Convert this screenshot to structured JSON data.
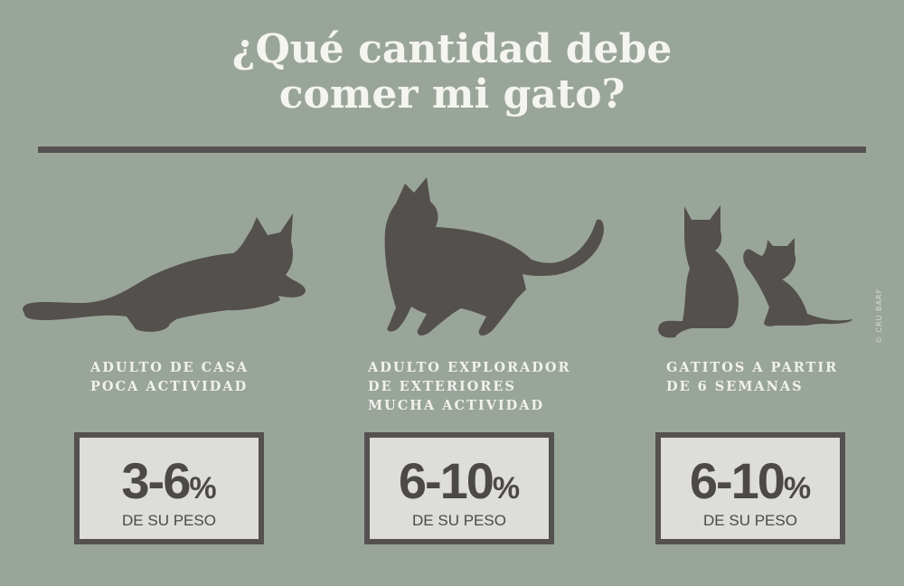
{
  "title": {
    "line1": "¿Qué cantidad  debe",
    "line2": "comer mi gato?"
  },
  "cards": [
    {
      "icon": "lying-cat-icon",
      "label": [
        "ADULTO DE CASA",
        "POCA ACTIVIDAD"
      ],
      "range": "3-6",
      "unit": "%",
      "sub": "DE SU PESO"
    },
    {
      "icon": "walking-cat-icon",
      "label": [
        "ADULTO EXPLORADOR",
        "DE EXTERIORES",
        "MUCHA ACTIVIDAD"
      ],
      "range": "6-10",
      "unit": "%",
      "sub": "DE SU PESO"
    },
    {
      "icon": "cat-and-kitten-icon",
      "label": [
        "GATITOS A PARTIR",
        "DE 6 SEMANAS"
      ],
      "range": "6-10",
      "unit": "%",
      "sub": "DE SU PESO"
    }
  ],
  "credit": "© CRU BARF",
  "colors": {
    "background": "#9aa599",
    "silhouette": "#54504e",
    "box_fill": "#ddddd9",
    "text_light": "#f4f4f1"
  }
}
